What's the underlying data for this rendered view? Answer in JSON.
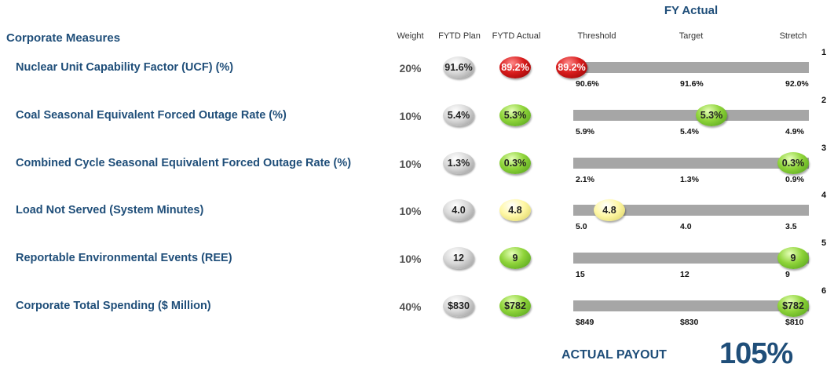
{
  "header": {
    "fy_actual": "FY Actual",
    "section_title": "Corporate Measures",
    "col_weight": "Weight",
    "col_plan": "FYTD Plan",
    "col_actual": "FYTD Actual",
    "col_threshold": "Threshold",
    "col_target": "Target",
    "col_stretch": "Stretch"
  },
  "colors": {
    "gray": "#c8c8c8",
    "green": "#7cc83a",
    "yellow": "#fff59a",
    "red": "#cc0000",
    "bar": "#a6a6a6",
    "title": "#1f4e79"
  },
  "rows": [
    {
      "num": "1",
      "measure": "Nuclear Unit Capability Factor (UCF) (%)",
      "weight": "20%",
      "plan": "91.6%",
      "actual": "89.2%",
      "actual_status": "red",
      "threshold": "90.6%",
      "target": "91.6%",
      "stretch": "92.0%",
      "marker": "89.2%",
      "marker_status": "red",
      "marker_fraction": 0.0
    },
    {
      "num": "2",
      "measure": "Coal Seasonal Equivalent Forced Outage Rate (%)",
      "weight": "10%",
      "plan": "5.4%",
      "actual": "5.3%",
      "actual_status": "green",
      "threshold": "5.9%",
      "target": "5.4%",
      "stretch": "4.9%",
      "marker": "5.3%",
      "marker_status": "green",
      "marker_fraction": 0.6
    },
    {
      "num": "3",
      "measure": "Combined Cycle Seasonal Equivalent Forced Outage Rate (%)",
      "weight": "10%",
      "plan": "1.3%",
      "actual": "0.3%",
      "actual_status": "green",
      "threshold": "2.1%",
      "target": "1.3%",
      "stretch": "0.9%",
      "marker": "0.3%",
      "marker_status": "green",
      "marker_fraction": 1.0
    },
    {
      "num": "4",
      "measure": "Load Not Served (System Minutes)",
      "weight": "10%",
      "plan": "4.0",
      "actual": "4.8",
      "actual_status": "yellow",
      "threshold": "5.0",
      "target": "4.0",
      "stretch": "3.5",
      "marker": "4.8",
      "marker_status": "yellow",
      "marker_fraction": 0.1
    },
    {
      "num": "5",
      "measure": "Reportable Environmental Events (REE)",
      "weight": "10%",
      "plan": "12",
      "actual": "9",
      "actual_status": "green",
      "threshold": "15",
      "target": "12",
      "stretch": "9",
      "marker": "9",
      "marker_status": "green",
      "marker_fraction": 1.0
    },
    {
      "num": "6",
      "measure": "Corporate Total Spending ($ Million)",
      "weight": "40%",
      "plan": "$830",
      "actual": "$782",
      "actual_status": "green",
      "threshold": "$849",
      "target": "$830",
      "stretch": "$810",
      "marker": "$782",
      "marker_status": "green",
      "marker_fraction": 1.0
    }
  ],
  "payout": {
    "label": "ACTUAL PAYOUT",
    "value": "105%"
  }
}
